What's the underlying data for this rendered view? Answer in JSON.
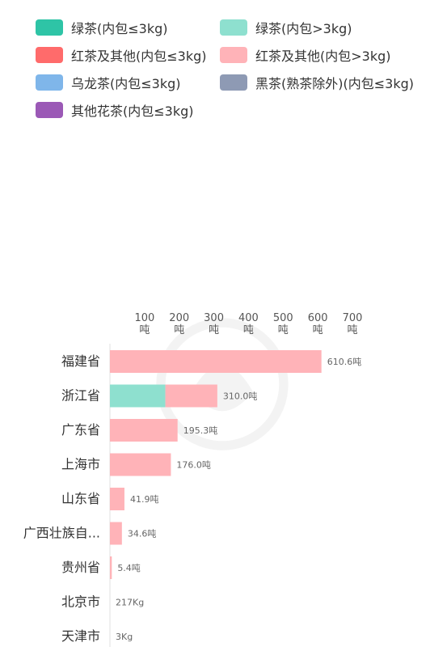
{
  "legend": [
    {
      "label": "绿茶(内包≤3kg)",
      "color": "#2ec4a6"
    },
    {
      "label": "绿茶(内包>3kg)",
      "color": "#8ee0cf"
    },
    {
      "label": "红茶及其他(内包≤3kg)",
      "color": "#ff6b6b"
    },
    {
      "label": "红茶及其他(内包>3kg)",
      "color": "#ffb3b8"
    },
    {
      "label": "乌龙茶(内包≤3kg)",
      "color": "#7fb6ea"
    },
    {
      "label": "黑茶(熟茶除外)(内包≤3kg)",
      "color": "#8e9ab4"
    },
    {
      "label": "其他花茶(内包≤3kg)",
      "color": "#9b59b6"
    }
  ],
  "chart_data": {
    "type": "bar",
    "orientation": "horizontal",
    "stacked": true,
    "x_ticks": [
      100,
      200,
      300,
      400,
      500,
      600,
      700
    ],
    "x_tick_unit": "吨",
    "xlim": [
      0,
      700
    ],
    "categories": [
      "福建省",
      "浙江省",
      "广东省",
      "上海市",
      "山东省",
      "广西壮族自...",
      "贵州省",
      "北京市",
      "天津市"
    ],
    "series": [
      {
        "name": "绿茶(内包>3kg)",
        "color": "#8ee0cf",
        "values": [
          0,
          160,
          0,
          0,
          0,
          0,
          0,
          0,
          0
        ]
      },
      {
        "name": "红茶及其他(内包>3kg)",
        "color": "#ffb3b8",
        "values": [
          610.6,
          150,
          195.3,
          176.0,
          41.9,
          34.6,
          5.4,
          0.217,
          0.003
        ]
      }
    ],
    "value_labels": [
      "610.6吨",
      "310.0吨",
      "195.3吨",
      "176.0吨",
      "41.9吨",
      "34.6吨",
      "5.4吨",
      "217Kg",
      "3Kg"
    ]
  }
}
